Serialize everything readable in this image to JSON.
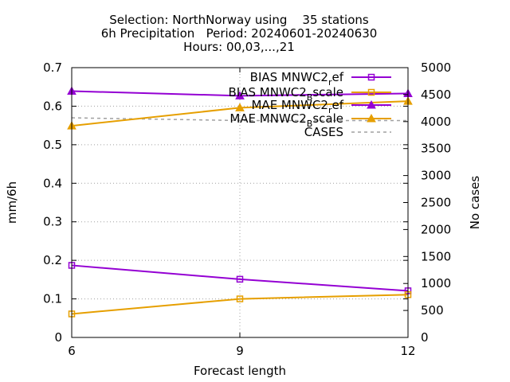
{
  "chart_data": {
    "type": "line",
    "title_lines": [
      "Selection: NorthNorway using    35 stations",
      "6h Precipitation   Period: 20240601-20240630",
      "Hours: 00,03,...,21"
    ],
    "xlabel": "Forecast length",
    "ylabel": "mm/6h",
    "y2label": "No cases",
    "x": [
      6,
      9,
      12
    ],
    "xlim": [
      6,
      12
    ],
    "ylim": [
      0,
      0.7
    ],
    "y2lim": [
      0,
      5000
    ],
    "xticks": [
      6,
      9,
      12
    ],
    "yticks": [
      0,
      0.1,
      0.2,
      0.3,
      0.4,
      0.5,
      0.6,
      0.7
    ],
    "y2ticks": [
      0,
      500,
      1000,
      1500,
      2000,
      2500,
      3000,
      3500,
      4000,
      4500,
      5000
    ],
    "grid": true,
    "legend_position": "top-right",
    "series": [
      {
        "name": "BIAS MNWC2_ref",
        "legend_main": "BIAS MNWC2",
        "legend_sub": "r",
        "legend_tail": "ef",
        "color": "#9400d3",
        "marker": "square",
        "axis": "y",
        "values": [
          0.187,
          0.151,
          0.121
        ]
      },
      {
        "name": "BIAS MNWC2_Bscale",
        "legend_main": "BIAS MNWC2",
        "legend_sub": "B",
        "legend_tail": "scale",
        "color": "#e69f00",
        "marker": "square",
        "axis": "y",
        "values": [
          0.061,
          0.1,
          0.111
        ]
      },
      {
        "name": "MAE MNWC2_ref",
        "legend_main": "MAE MNWC2",
        "legend_sub": "r",
        "legend_tail": "ef",
        "color": "#9400d3",
        "marker": "triangle",
        "axis": "y",
        "values": [
          0.639,
          0.627,
          0.633
        ]
      },
      {
        "name": "MAE MNWC2_Bscale",
        "legend_main": "MAE MNWC2",
        "legend_sub": "B",
        "legend_tail": "scale",
        "color": "#e69f00",
        "marker": "triangle",
        "axis": "y",
        "values": [
          0.549,
          0.596,
          0.613
        ]
      },
      {
        "name": "CASES",
        "legend_main": "CASES",
        "legend_sub": "",
        "legend_tail": "",
        "color": "#a0a0a0",
        "marker": "none",
        "dash": true,
        "axis": "y2",
        "values": [
          4070,
          4020,
          4020
        ]
      }
    ]
  }
}
